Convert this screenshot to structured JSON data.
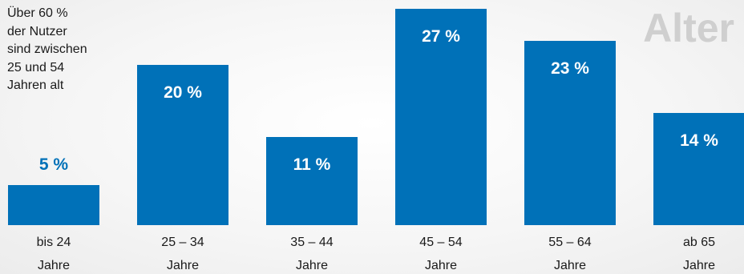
{
  "annotation": {
    "lines": [
      "Über 60 %",
      "der Nutzer",
      "sind zwischen",
      "25 und 54",
      "Jahren alt"
    ]
  },
  "colors": {
    "bar": "#0071b8",
    "label_inside": "#ffffff",
    "label_outside": "#0071b8",
    "title": "#cfcfcf"
  },
  "chart_data": {
    "type": "bar",
    "title": "Alter",
    "categories": [
      [
        "bis 24",
        "Jahre"
      ],
      [
        "25 – 34",
        "Jahre"
      ],
      [
        "35 – 44",
        "Jahre"
      ],
      [
        "45 – 54",
        "Jahre"
      ],
      [
        "55 – 64",
        "Jahre"
      ],
      [
        "ab 65",
        "Jahre"
      ]
    ],
    "values": [
      5,
      20,
      11,
      27,
      23,
      14
    ],
    "data_labels": [
      "5 %",
      "20 %",
      "11 %",
      "27 %",
      "23 %",
      "14 %"
    ],
    "unit": "%",
    "ylim": [
      0,
      100
    ],
    "grid": false,
    "legend": "none"
  }
}
